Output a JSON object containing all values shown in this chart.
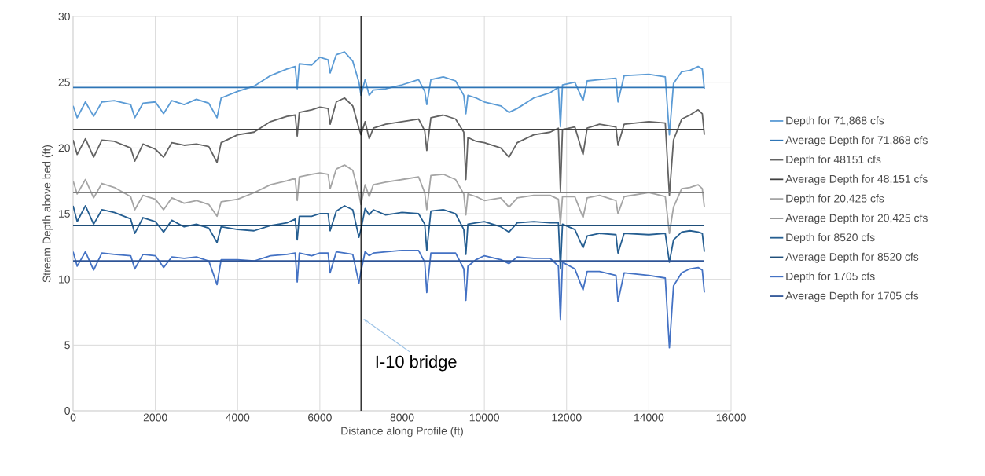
{
  "chart_data": {
    "type": "line",
    "xlabel": "Distance along Profile (ft)",
    "ylabel": "Stream Depth above bed (ft)",
    "x": [
      0,
      100,
      300,
      500,
      700,
      1000,
      1400,
      1500,
      1700,
      2000,
      2200,
      2400,
      2700,
      3000,
      3300,
      3500,
      3600,
      4000,
      4400,
      4800,
      5200,
      5400,
      5450,
      5500,
      5800,
      6000,
      6200,
      6250,
      6400,
      6600,
      6800,
      6950,
      7000,
      7100,
      7200,
      7300,
      7600,
      8000,
      8400,
      8550,
      8600,
      8700,
      9000,
      9300,
      9500,
      9550,
      9600,
      9800,
      10000,
      10400,
      10600,
      10800,
      11200,
      11600,
      11800,
      11850,
      11900,
      12200,
      12400,
      12500,
      12800,
      13200,
      13250,
      13400,
      14000,
      14400,
      14500,
      14600,
      14800,
      15000,
      15200,
      15300,
      15350
    ],
    "series": [
      {
        "name": "Depth for 71,868 cfs",
        "color": "#5b9bd5",
        "values": [
          23.2,
          22.3,
          23.5,
          22.4,
          23.5,
          23.6,
          23.3,
          22.3,
          23.4,
          23.5,
          22.6,
          23.6,
          23.3,
          23.7,
          23.4,
          22.3,
          23.8,
          24.3,
          24.7,
          25.5,
          26.0,
          26.2,
          24.5,
          26.4,
          26.3,
          26.9,
          26.7,
          25.7,
          27.1,
          27.3,
          26.6,
          25.0,
          24.0,
          25.2,
          24.0,
          24.4,
          24.5,
          24.8,
          25.2,
          24.3,
          23.3,
          25.2,
          25.4,
          25.1,
          24.0,
          22.6,
          24.0,
          23.8,
          23.5,
          23.2,
          22.7,
          23.0,
          23.8,
          24.2,
          24.6,
          21.6,
          24.8,
          25.0,
          23.6,
          25.1,
          25.2,
          25.3,
          23.5,
          25.5,
          25.6,
          25.4,
          21.0,
          24.9,
          25.8,
          25.9,
          26.2,
          26.0,
          24.5
        ]
      },
      {
        "name": "Average Depth for 71,868 cfs",
        "color": "#2e75b6",
        "values": [
          24.6,
          24.6,
          24.6,
          24.6,
          24.6,
          24.6,
          24.6,
          24.6,
          24.6,
          24.6,
          24.6,
          24.6,
          24.6,
          24.6,
          24.6,
          24.6,
          24.6,
          24.6,
          24.6,
          24.6,
          24.6,
          24.6,
          24.6,
          24.6,
          24.6,
          24.6,
          24.6,
          24.6,
          24.6,
          24.6,
          24.6,
          24.6,
          24.6,
          24.6,
          24.6,
          24.6,
          24.6,
          24.6,
          24.6,
          24.6,
          24.6,
          24.6,
          24.6,
          24.6,
          24.6,
          24.6,
          24.6,
          24.6,
          24.6,
          24.6,
          24.6,
          24.6,
          24.6,
          24.6,
          24.6,
          24.6,
          24.6,
          24.6,
          24.6,
          24.6,
          24.6,
          24.6,
          24.6,
          24.6,
          24.6,
          24.6,
          24.6,
          24.6,
          24.6,
          24.6,
          24.6,
          24.6,
          24.6
        ]
      },
      {
        "name": "Depth for 48151 cfs",
        "color": "#636363",
        "values": [
          20.6,
          19.5,
          20.7,
          19.3,
          20.6,
          20.5,
          20.0,
          19.0,
          20.3,
          19.9,
          19.3,
          20.4,
          20.2,
          20.3,
          20.1,
          18.9,
          20.4,
          21.0,
          21.2,
          22.0,
          22.4,
          22.5,
          20.9,
          22.7,
          22.9,
          23.1,
          23.0,
          21.8,
          23.5,
          23.8,
          23.2,
          21.5,
          21.0,
          22.0,
          20.7,
          21.5,
          21.8,
          22.0,
          22.2,
          21.3,
          19.8,
          22.3,
          22.5,
          22.2,
          21.2,
          17.6,
          20.8,
          20.5,
          20.4,
          20.0,
          19.3,
          20.4,
          21.0,
          21.2,
          21.5,
          16.7,
          21.4,
          21.6,
          19.5,
          21.5,
          21.8,
          21.6,
          20.2,
          21.8,
          22.0,
          21.9,
          16.4,
          20.6,
          22.2,
          22.5,
          22.9,
          22.6,
          21.0
        ]
      },
      {
        "name": "Average Depth for 48,151 cfs",
        "color": "#404040",
        "values": [
          21.4,
          21.4,
          21.4,
          21.4,
          21.4,
          21.4,
          21.4,
          21.4,
          21.4,
          21.4,
          21.4,
          21.4,
          21.4,
          21.4,
          21.4,
          21.4,
          21.4,
          21.4,
          21.4,
          21.4,
          21.4,
          21.4,
          21.4,
          21.4,
          21.4,
          21.4,
          21.4,
          21.4,
          21.4,
          21.4,
          21.4,
          21.4,
          21.4,
          21.4,
          21.4,
          21.4,
          21.4,
          21.4,
          21.4,
          21.4,
          21.4,
          21.4,
          21.4,
          21.4,
          21.4,
          21.4,
          21.4,
          21.4,
          21.4,
          21.4,
          21.4,
          21.4,
          21.4,
          21.4,
          21.4,
          21.4,
          21.4,
          21.4,
          21.4,
          21.4,
          21.4,
          21.4,
          21.4,
          21.4,
          21.4,
          21.4,
          21.4,
          21.4,
          21.4,
          21.4,
          21.4,
          21.4,
          21.4
        ]
      },
      {
        "name": "Depth for 20,425 cfs",
        "color": "#a5a5a5",
        "values": [
          17.5,
          16.5,
          17.6,
          16.2,
          17.3,
          17.0,
          16.3,
          15.3,
          16.4,
          16.1,
          15.3,
          16.2,
          15.8,
          16.0,
          15.7,
          14.8,
          15.9,
          16.1,
          16.6,
          17.2,
          17.5,
          17.7,
          16.0,
          17.8,
          18.0,
          18.1,
          18.0,
          16.9,
          18.4,
          18.7,
          18.3,
          16.5,
          15.7,
          17.2,
          16.3,
          17.2,
          17.4,
          17.6,
          17.8,
          16.6,
          15.3,
          17.9,
          18.0,
          17.6,
          16.5,
          14.9,
          16.5,
          16.3,
          16.0,
          16.2,
          15.5,
          16.2,
          16.4,
          16.4,
          16.1,
          14.2,
          16.3,
          16.3,
          14.7,
          16.2,
          16.4,
          16.0,
          15.0,
          16.3,
          16.6,
          16.3,
          13.5,
          15.5,
          16.9,
          17.0,
          17.2,
          16.9,
          15.5
        ]
      },
      {
        "name": "Average Depth for 20,425 cfs",
        "color": "#7f7f7f",
        "values": [
          16.6,
          16.6,
          16.6,
          16.6,
          16.6,
          16.6,
          16.6,
          16.6,
          16.6,
          16.6,
          16.6,
          16.6,
          16.6,
          16.6,
          16.6,
          16.6,
          16.6,
          16.6,
          16.6,
          16.6,
          16.6,
          16.6,
          16.6,
          16.6,
          16.6,
          16.6,
          16.6,
          16.6,
          16.6,
          16.6,
          16.6,
          16.6,
          16.6,
          16.6,
          16.6,
          16.6,
          16.6,
          16.6,
          16.6,
          16.6,
          16.6,
          16.6,
          16.6,
          16.6,
          16.6,
          16.6,
          16.6,
          16.6,
          16.6,
          16.6,
          16.6,
          16.6,
          16.6,
          16.6,
          16.6,
          16.6,
          16.6,
          16.6,
          16.6,
          16.6,
          16.6,
          16.6,
          16.6,
          16.6,
          16.6,
          16.6,
          16.6,
          16.6,
          16.6,
          16.6,
          16.6,
          16.6,
          16.6
        ]
      },
      {
        "name": "Depth for 8520 cfs",
        "color": "#255e91",
        "values": [
          15.6,
          14.4,
          15.6,
          14.2,
          15.3,
          15.1,
          14.6,
          13.5,
          14.7,
          14.4,
          13.6,
          14.5,
          14.0,
          14.2,
          13.9,
          12.8,
          14.0,
          13.8,
          13.7,
          14.1,
          14.3,
          14.6,
          13.0,
          14.8,
          14.8,
          15.0,
          15.0,
          13.7,
          15.2,
          15.6,
          15.3,
          13.2,
          13.8,
          15.4,
          14.9,
          15.3,
          14.9,
          15.1,
          15.0,
          14.2,
          12.2,
          15.2,
          15.3,
          15.0,
          13.8,
          11.9,
          14.2,
          14.3,
          14.4,
          14.0,
          13.6,
          14.3,
          14.4,
          14.3,
          14.3,
          10.8,
          14.2,
          13.8,
          12.4,
          13.3,
          13.5,
          13.4,
          12.0,
          13.5,
          13.4,
          13.5,
          11.3,
          13.0,
          13.6,
          13.7,
          13.6,
          13.5,
          12.1
        ]
      },
      {
        "name": "Average Depth for 8520 cfs",
        "color": "#1f4e79",
        "values": [
          14.1,
          14.1,
          14.1,
          14.1,
          14.1,
          14.1,
          14.1,
          14.1,
          14.1,
          14.1,
          14.1,
          14.1,
          14.1,
          14.1,
          14.1,
          14.1,
          14.1,
          14.1,
          14.1,
          14.1,
          14.1,
          14.1,
          14.1,
          14.1,
          14.1,
          14.1,
          14.1,
          14.1,
          14.1,
          14.1,
          14.1,
          14.1,
          14.1,
          14.1,
          14.1,
          14.1,
          14.1,
          14.1,
          14.1,
          14.1,
          14.1,
          14.1,
          14.1,
          14.1,
          14.1,
          14.1,
          14.1,
          14.1,
          14.1,
          14.1,
          14.1,
          14.1,
          14.1,
          14.1,
          14.1,
          14.1,
          14.1,
          14.1,
          14.1,
          14.1,
          14.1,
          14.1,
          14.1,
          14.1,
          14.1,
          14.1,
          14.1,
          14.1,
          14.1,
          14.1,
          14.1,
          14.1,
          14.1
        ]
      },
      {
        "name": "Depth for 1705 cfs",
        "color": "#4472c4",
        "values": [
          12.1,
          11.0,
          12.1,
          10.7,
          12.0,
          11.9,
          11.8,
          10.8,
          11.9,
          11.8,
          10.9,
          11.7,
          11.6,
          11.7,
          11.4,
          9.6,
          11.5,
          11.5,
          11.4,
          11.8,
          11.9,
          12.0,
          9.8,
          12.0,
          11.8,
          12.0,
          12.0,
          10.5,
          12.1,
          12.0,
          11.9,
          9.7,
          10.6,
          12.1,
          11.8,
          12.0,
          12.1,
          12.2,
          12.2,
          11.3,
          9.0,
          12.0,
          12.0,
          12.0,
          10.8,
          8.4,
          11.0,
          11.5,
          11.8,
          11.5,
          11.2,
          11.7,
          11.6,
          11.6,
          11.0,
          6.9,
          11.3,
          10.8,
          9.2,
          10.6,
          10.6,
          10.3,
          8.3,
          10.5,
          10.3,
          10.1,
          4.8,
          9.5,
          10.5,
          10.8,
          10.9,
          10.7,
          9.0
        ]
      },
      {
        "name": "Average Depth for 1705 cfs",
        "color": "#2f5597",
        "values": [
          11.4,
          11.4,
          11.4,
          11.4,
          11.4,
          11.4,
          11.4,
          11.4,
          11.4,
          11.4,
          11.4,
          11.4,
          11.4,
          11.4,
          11.4,
          11.4,
          11.4,
          11.4,
          11.4,
          11.4,
          11.4,
          11.4,
          11.4,
          11.4,
          11.4,
          11.4,
          11.4,
          11.4,
          11.4,
          11.4,
          11.4,
          11.4,
          11.4,
          11.4,
          11.4,
          11.4,
          11.4,
          11.4,
          11.4,
          11.4,
          11.4,
          11.4,
          11.4,
          11.4,
          11.4,
          11.4,
          11.4,
          11.4,
          11.4,
          11.4,
          11.4,
          11.4,
          11.4,
          11.4,
          11.4,
          11.4,
          11.4,
          11.4,
          11.4,
          11.4,
          11.4,
          11.4,
          11.4,
          11.4,
          11.4,
          11.4,
          11.4,
          11.4,
          11.4,
          11.4,
          11.4,
          11.4,
          11.4
        ]
      }
    ],
    "xlim": [
      0,
      16000
    ],
    "xticks": [
      0,
      2000,
      4000,
      6000,
      8000,
      10000,
      12000,
      14000,
      16000
    ],
    "ylim": [
      0,
      30
    ],
    "yticks": [
      0,
      5,
      10,
      15,
      20,
      25,
      30
    ],
    "grid": true,
    "legend": "right",
    "ref_lines": [
      {
        "axis": "x",
        "value": 7000,
        "color": "#000000"
      }
    ],
    "annotations": [
      {
        "text": "I-10 bridge",
        "x": 7000,
        "y": 7
      }
    ]
  }
}
